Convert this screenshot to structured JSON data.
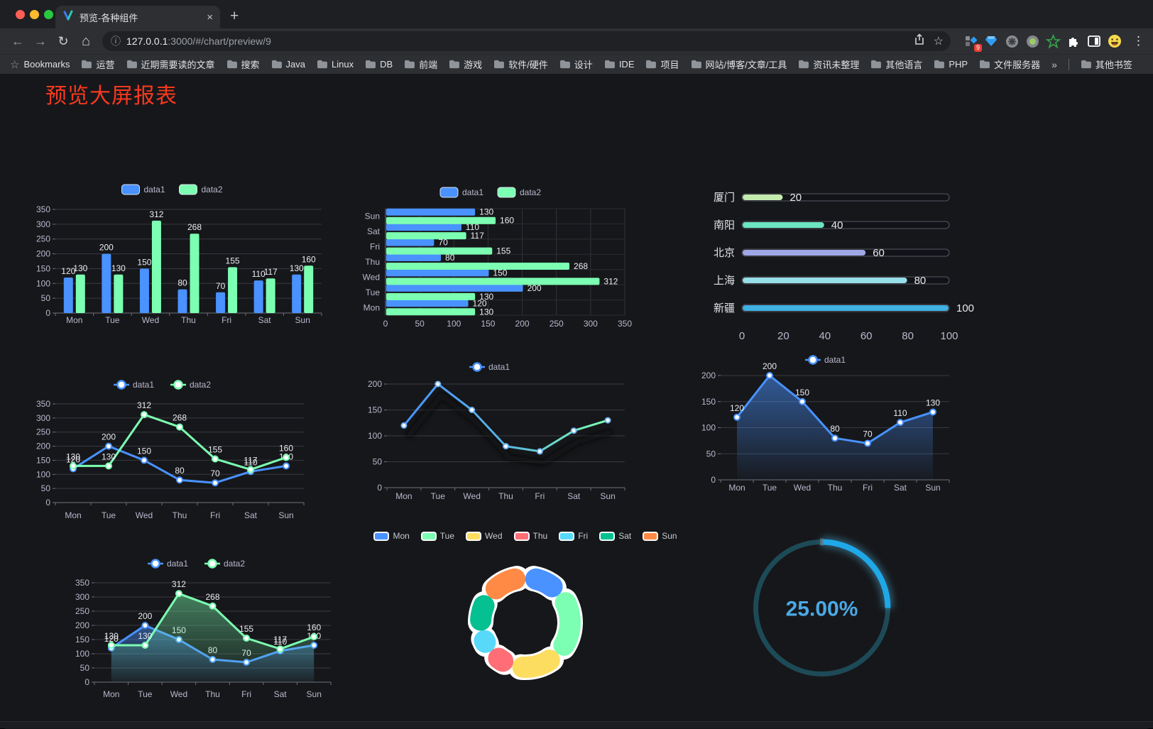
{
  "browser": {
    "traffic_lights": [
      "#ff5f57",
      "#febc2e",
      "#28c840"
    ],
    "tab_title": "预览-各种组件",
    "url_host": "127.0.0.1",
    "url_path": ":3000/#/chart/preview/9",
    "extension_badge": "9",
    "bookmarks_label": "Bookmarks",
    "bookmarks": [
      "运营",
      "近期需要读的文章",
      "搜索",
      "Java",
      "Linux",
      "DB",
      "前端",
      "游戏",
      "软件/硬件",
      "设计",
      "IDE",
      "项目",
      "网站/博客/文章/工具",
      "资讯未整理",
      "其他语言",
      "PHP",
      "文件服务器"
    ],
    "other_bookmarks": "其他书签",
    "glyphs": {
      "close": "×",
      "new_tab": "+",
      "back": "←",
      "forward": "→",
      "reload": "↻",
      "home": "⌂",
      "info": "ⓘ",
      "star": "☆",
      "menu": "⋮",
      "overflow": "»",
      "bookmarks_star": "☆"
    }
  },
  "page": {
    "title": "预览大屏报表",
    "title_color": "#f6391f"
  },
  "chart_data": [
    {
      "id": "c1",
      "type": "bar",
      "legend": "rect",
      "labels": true,
      "categories": [
        "Mon",
        "Tue",
        "Wed",
        "Thu",
        "Fri",
        "Sat",
        "Sun"
      ],
      "ylim": [
        0,
        350
      ],
      "ystep": 50,
      "series": [
        {
          "name": "data1",
          "color": "#4992ff",
          "values": [
            120,
            200,
            150,
            80,
            70,
            110,
            130
          ]
        },
        {
          "name": "data2",
          "color": "#7cffb2",
          "values": [
            130,
            130,
            312,
            268,
            155,
            117,
            160
          ]
        }
      ]
    },
    {
      "id": "c2",
      "type": "hbar",
      "legend": "rect",
      "labels": true,
      "categories": [
        "Mon",
        "Tue",
        "Wed",
        "Thu",
        "Fri",
        "Sat",
        "Sun"
      ],
      "xlim": [
        0,
        350
      ],
      "xstep": 50,
      "series": [
        {
          "name": "data1",
          "color": "#4992ff",
          "values": [
            120,
            200,
            150,
            80,
            70,
            110,
            130
          ]
        },
        {
          "name": "data2",
          "color": "#7cffb2",
          "values": [
            130,
            130,
            312,
            268,
            155,
            117,
            160
          ]
        }
      ]
    },
    {
      "id": "c3",
      "type": "progress",
      "categories": [
        "厦门",
        "南阳",
        "北京",
        "上海",
        "新疆"
      ],
      "values": [
        20,
        40,
        60,
        80,
        100
      ],
      "colors": [
        "#c4ebad",
        "#6be6c1",
        "#a0a7e6",
        "#96dee8",
        "#3fb1e3"
      ],
      "xlim": [
        0,
        100
      ],
      "xstep": 20
    },
    {
      "id": "c4",
      "type": "line",
      "legend": "line",
      "labels": true,
      "categories": [
        "Mon",
        "Tue",
        "Wed",
        "Thu",
        "Fri",
        "Sat",
        "Sun"
      ],
      "ylim": [
        0,
        350
      ],
      "ystep": 50,
      "series": [
        {
          "name": "data1",
          "color": "#4992ff",
          "values": [
            120,
            200,
            150,
            80,
            70,
            110,
            130
          ]
        },
        {
          "name": "data2",
          "color": "#7cffb2",
          "values": [
            130,
            130,
            312,
            268,
            155,
            117,
            160
          ]
        }
      ]
    },
    {
      "id": "c5",
      "type": "line",
      "legend": "line",
      "labels": false,
      "shadow": true,
      "categories": [
        "Mon",
        "Tue",
        "Wed",
        "Thu",
        "Fri",
        "Sat",
        "Sun"
      ],
      "ylim": [
        0,
        200
      ],
      "ystep": 50,
      "series": [
        {
          "name": "data1",
          "color": "#4992ff",
          "marker_color": "#6fb3f2",
          "marker_r": 3.5,
          "gradient": [
            "#4992ff",
            "#58b5e1",
            "#7cffb2"
          ],
          "values": [
            120,
            200,
            150,
            80,
            70,
            110,
            130
          ]
        }
      ]
    },
    {
      "id": "c6",
      "type": "area",
      "legend": "line",
      "labels": true,
      "categories": [
        "Mon",
        "Tue",
        "Wed",
        "Thu",
        "Fri",
        "Sat",
        "Sun"
      ],
      "ylim": [
        0,
        200
      ],
      "ystep": 50,
      "series": [
        {
          "name": "data1",
          "color": "#4992ff",
          "area": [
            "rgba(73,146,255,0.55)",
            "rgba(73,146,255,0.03)"
          ],
          "values": [
            120,
            200,
            150,
            80,
            70,
            110,
            130
          ]
        }
      ]
    },
    {
      "id": "c7",
      "type": "area",
      "legend": "line",
      "labels": true,
      "categories": [
        "Mon",
        "Tue",
        "Wed",
        "Thu",
        "Fri",
        "Sat",
        "Sun"
      ],
      "ylim": [
        0,
        350
      ],
      "ystep": 50,
      "series": [
        {
          "name": "data1",
          "color": "#4992ff",
          "area": [
            "rgba(73,146,255,0.50)",
            "rgba(73,146,255,0.03)"
          ],
          "values": [
            120,
            200,
            150,
            80,
            70,
            110,
            130
          ]
        },
        {
          "name": "data2",
          "color": "#7cffb2",
          "area": [
            "rgba(124,255,178,0.45)",
            "rgba(124,255,178,0.03)"
          ],
          "values": [
            130,
            130,
            312,
            268,
            155,
            117,
            160
          ]
        }
      ]
    },
    {
      "id": "c8",
      "type": "pie",
      "categories": [
        "Mon",
        "Tue",
        "Wed",
        "Thu",
        "Fri",
        "Sat",
        "Sun"
      ],
      "values": [
        120,
        200,
        150,
        80,
        70,
        110,
        130
      ],
      "colors": [
        "#4992ff",
        "#7cffb2",
        "#fddd60",
        "#ff6e76",
        "#58d9f9",
        "#05c091",
        "#ff8a45"
      ]
    },
    {
      "id": "c9",
      "type": "gauge",
      "value": 25,
      "label": "25.00%",
      "color": "#1fa8e8",
      "track_color": "#1d4a57",
      "text_color": "#4aa9e6"
    }
  ]
}
